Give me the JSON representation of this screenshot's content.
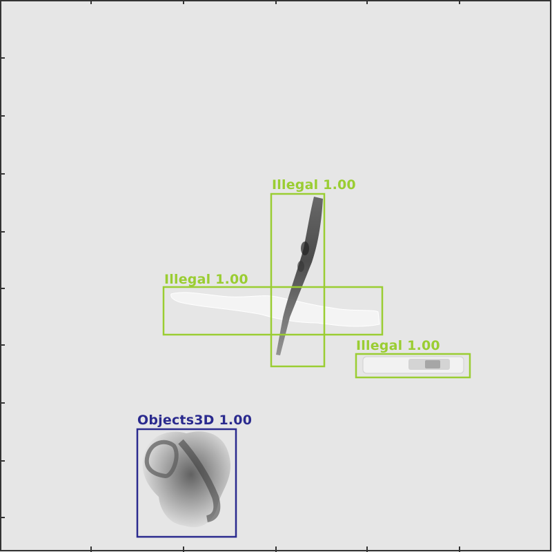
{
  "scan": {
    "background_color": "#e6e6e6",
    "frame_color": "#333333"
  },
  "detections": [
    {
      "label": "Illegal",
      "score": "1.00",
      "color": "#9acd32"
    },
    {
      "label": "Illegal",
      "score": "1.00",
      "color": "#9acd32"
    },
    {
      "label": "Illegal",
      "score": "1.00",
      "color": "#9acd32"
    },
    {
      "label": "Objects3D",
      "score": "1.00",
      "color": "#2a2a8e"
    }
  ]
}
